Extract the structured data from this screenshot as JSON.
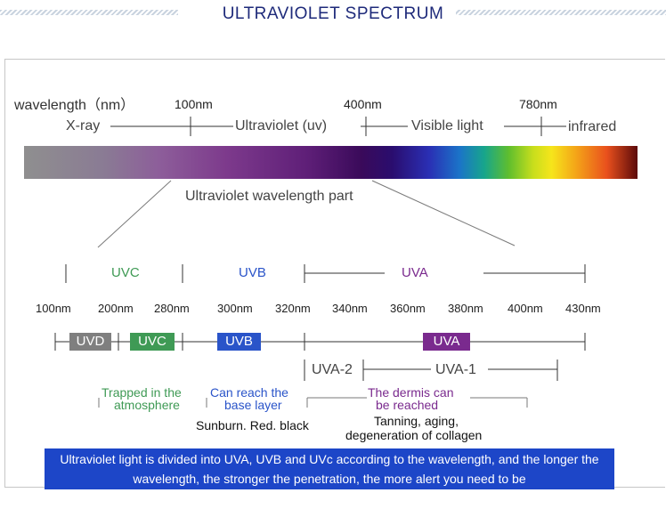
{
  "header": {
    "title": "ULTRAVIOLET SPECTRUM"
  },
  "spectrum": {
    "axis_label": "wavelength（nm）",
    "ticks": [
      "100nm",
      "400nm",
      "780nm"
    ],
    "regions": [
      "X-ray",
      "Ultraviolet (uv)",
      "Visible light",
      "infrared"
    ],
    "caption": "Ultraviolet wavelength part"
  },
  "uv_detail": {
    "bands": [
      "UVC",
      "UVB",
      "UVA"
    ],
    "ticks": [
      "100nm",
      "200nm",
      "280nm",
      "300nm",
      "320nm",
      "340nm",
      "360nm",
      "380nm",
      "400nm",
      "430nm"
    ],
    "boxes": [
      "UVD",
      "UVC",
      "UVB",
      "UVA"
    ],
    "subbands": [
      "UVA-2",
      "UVA-1"
    ],
    "colors": {
      "uvd": "#7f7f7f",
      "uvc": "#3f9a55",
      "uvb": "#2a54c9",
      "uva": "#7a2a8e"
    }
  },
  "notes": {
    "uvc_line1": "Trapped in the",
    "uvc_line2": "atmosphere",
    "uvb_line1": "Can reach the",
    "uvb_line2": "base layer",
    "uva_line1": "The dermis can",
    "uva_line2": "be reached",
    "uvb_effect": "Sunburn. Red. black",
    "uva_effect_line1": "Tanning, aging,",
    "uva_effect_line2": "degeneration of collagen"
  },
  "banner": {
    "text": "Ultraviolet light is divided into UVA, UVB and UVc according to the wavelength, and the longer the wavelength, the stronger the penetration, the more alert you need to be"
  }
}
